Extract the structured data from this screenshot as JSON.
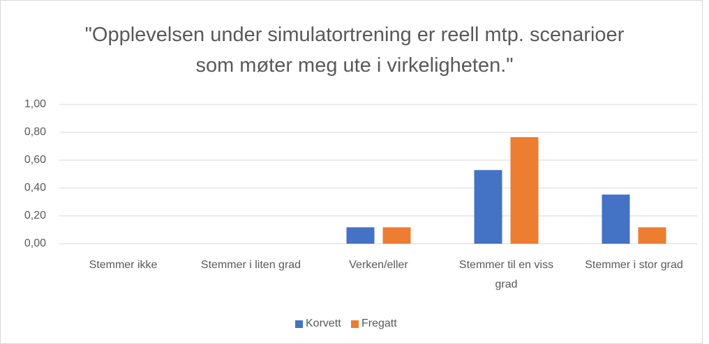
{
  "chart_data": {
    "type": "bar",
    "title": "\"Opplevelsen under simulatortrening er reell mtp. scenarioer som møter meg ute i virkeligheten.\"",
    "categories": [
      "Stemmer ikke",
      "Stemmer i liten grad",
      "Verken/eller",
      "Stemmer til en viss grad",
      "Stemmer i stor grad"
    ],
    "series": [
      {
        "name": "Korvett",
        "color": "#4472c4",
        "values": [
          0,
          0,
          0.118,
          0.529,
          0.353
        ]
      },
      {
        "name": "Fregatt",
        "color": "#ed7d31",
        "values": [
          0,
          0,
          0.118,
          0.765,
          0.118
        ]
      }
    ],
    "ylim": [
      0,
      1
    ],
    "yticks": [
      {
        "value": 0,
        "label": "0,00"
      },
      {
        "value": 0.2,
        "label": "0,20"
      },
      {
        "value": 0.4,
        "label": "0,40"
      },
      {
        "value": 0.6,
        "label": "0,60"
      },
      {
        "value": 0.8,
        "label": "0,80"
      },
      {
        "value": 1,
        "label": "1,00"
      }
    ],
    "grid": true,
    "legend": "bottom"
  }
}
